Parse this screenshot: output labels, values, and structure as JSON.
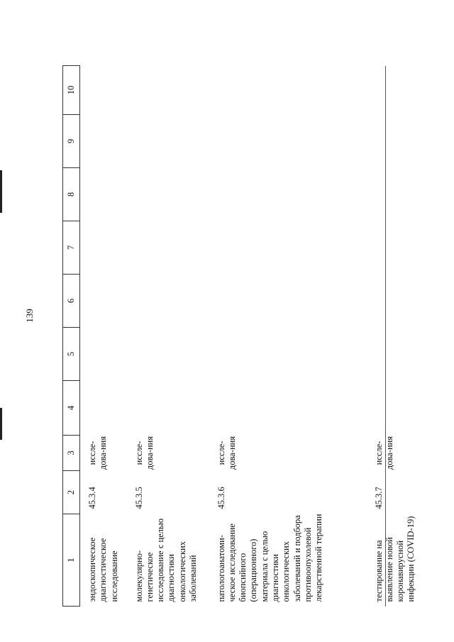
{
  "page_number": "139",
  "table": {
    "headers": [
      "1",
      "2",
      "3",
      "4",
      "5",
      "6",
      "7",
      "8",
      "9",
      "10"
    ],
    "rows": [
      {
        "name": "эндоскопическое диагностическое исследование",
        "code": "45.3.4",
        "unit": "иссле-дова-ния"
      },
      {
        "name": "молекулярно-генетическое исследование с целью диагностики онкологических заболеваний",
        "code": "45.3.5",
        "unit": "иссле-дова-ния"
      },
      {
        "name": "патологоанатоми-ческое исследование биопсийного (операционного) материала с целью диагностики онкологических заболеваний и подбора противоопухолевой лекарственной терапии",
        "code": "45.3.6",
        "unit": "иссле-дова-ния"
      },
      {
        "name": "тестирование на выявление новой коронавирусной инфекции (COVID-19)",
        "code": "45.3.7",
        "unit": "иссле-дова-ния"
      }
    ]
  }
}
